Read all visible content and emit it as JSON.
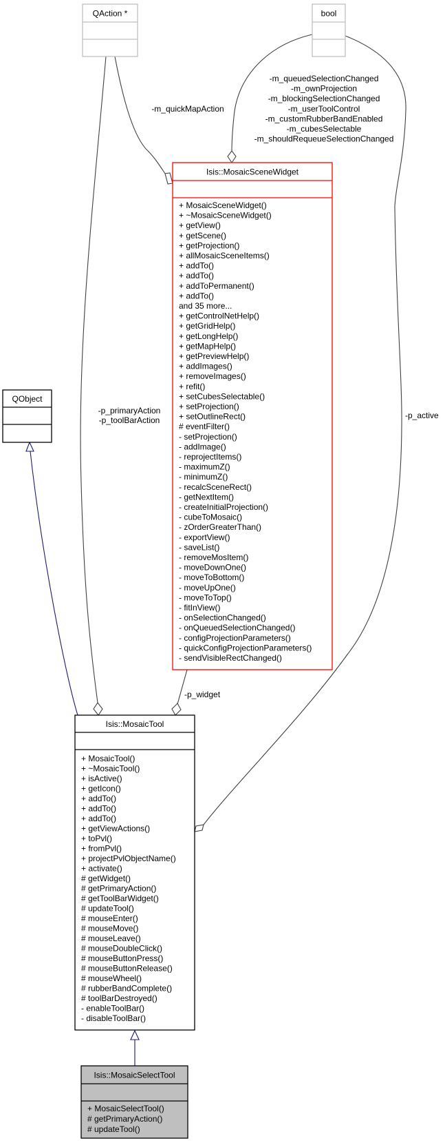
{
  "diagram": {
    "colors": {
      "external_border": "#bfbfbf",
      "focus_border": "#ff0000",
      "normal_border": "#000000",
      "focus_fill": "#bfbfbf",
      "inheritance_edge": "#191970",
      "usage_edge": "#404040"
    },
    "classes": {
      "qaction": {
        "name": "QAction *",
        "methods": []
      },
      "bool": {
        "name": "bool",
        "methods": []
      },
      "qobject": {
        "name": "QObject",
        "methods": []
      },
      "scene_widget": {
        "name": "Isis::MosaicSceneWidget",
        "methods": [
          "+ MosaicSceneWidget()",
          "+ ~MosaicSceneWidget()",
          "+ getView()",
          "+ getScene()",
          "+ getProjection()",
          "+ allMosaicSceneItems()",
          "+ addTo()",
          "+ addTo()",
          "+ addToPermanent()",
          "+ addTo()",
          "and 35 more...",
          "+ getControlNetHelp()",
          "+ getGridHelp()",
          "+ getLongHelp()",
          "+ getMapHelp()",
          "+ getPreviewHelp()",
          "+ addImages()",
          "+ removeImages()",
          "+ refit()",
          "+ setCubesSelectable()",
          "+ setProjection()",
          "+ setOutlineRect()",
          "# eventFilter()",
          "- setProjection()",
          "- addImage()",
          "- reprojectItems()",
          "- maximumZ()",
          "- minimumZ()",
          "- recalcSceneRect()",
          "- getNextItem()",
          "- createInitialProjection()",
          "- cubeToMosaic()",
          "- zOrderGreaterThan()",
          "- exportView()",
          "- saveList()",
          "- removeMosItem()",
          "- moveDownOne()",
          "- moveToBottom()",
          "- moveUpOne()",
          "- moveToTop()",
          "- fitInView()",
          "- onSelectionChanged()",
          "- onQueuedSelectionChanged()",
          "- configProjectionParameters()",
          "- quickConfigProjectionParameters()",
          "- sendVisibleRectChanged()"
        ]
      },
      "mosaic_tool": {
        "name": "Isis::MosaicTool",
        "methods": [
          "+ MosaicTool()",
          "+ ~MosaicTool()",
          "+ isActive()",
          "+ getIcon()",
          "+ addTo()",
          "+ addTo()",
          "+ addTo()",
          "+ getViewActions()",
          "+ toPvl()",
          "+ fromPvl()",
          "+ projectPvlObjectName()",
          "+ activate()",
          "# getWidget()",
          "# getPrimaryAction()",
          "# getToolBarWidget()",
          "# updateTool()",
          "# mouseEnter()",
          "# mouseMove()",
          "# mouseLeave()",
          "# mouseDoubleClick()",
          "# mouseButtonPress()",
          "# mouseButtonRelease()",
          "# mouseWheel()",
          "# rubberBandComplete()",
          "# toolBarDestroyed()",
          "- enableToolBar()",
          "- disableToolBar()"
        ]
      },
      "select_tool": {
        "name": "Isis::MosaicSelectTool",
        "methods": [
          "+ MosaicSelectTool()",
          "# getPrimaryAction()",
          "# updateTool()"
        ]
      }
    },
    "edge_labels": {
      "quick_map": [
        "-m_quickMapAction"
      ],
      "bool_widget": [
        "-m_queuedSelectionChanged",
        "-m_ownProjection",
        "-m_blockingSelectionChanged",
        "-m_userToolControl",
        "-m_customRubberBandEnabled",
        "-m_cubesSelectable",
        "-m_shouldRequeueSelectionChanged"
      ],
      "primary": [
        "-p_primaryAction",
        "-p_toolBarAction"
      ],
      "active": [
        "-p_active"
      ],
      "widget": [
        "-p_widget"
      ]
    }
  }
}
